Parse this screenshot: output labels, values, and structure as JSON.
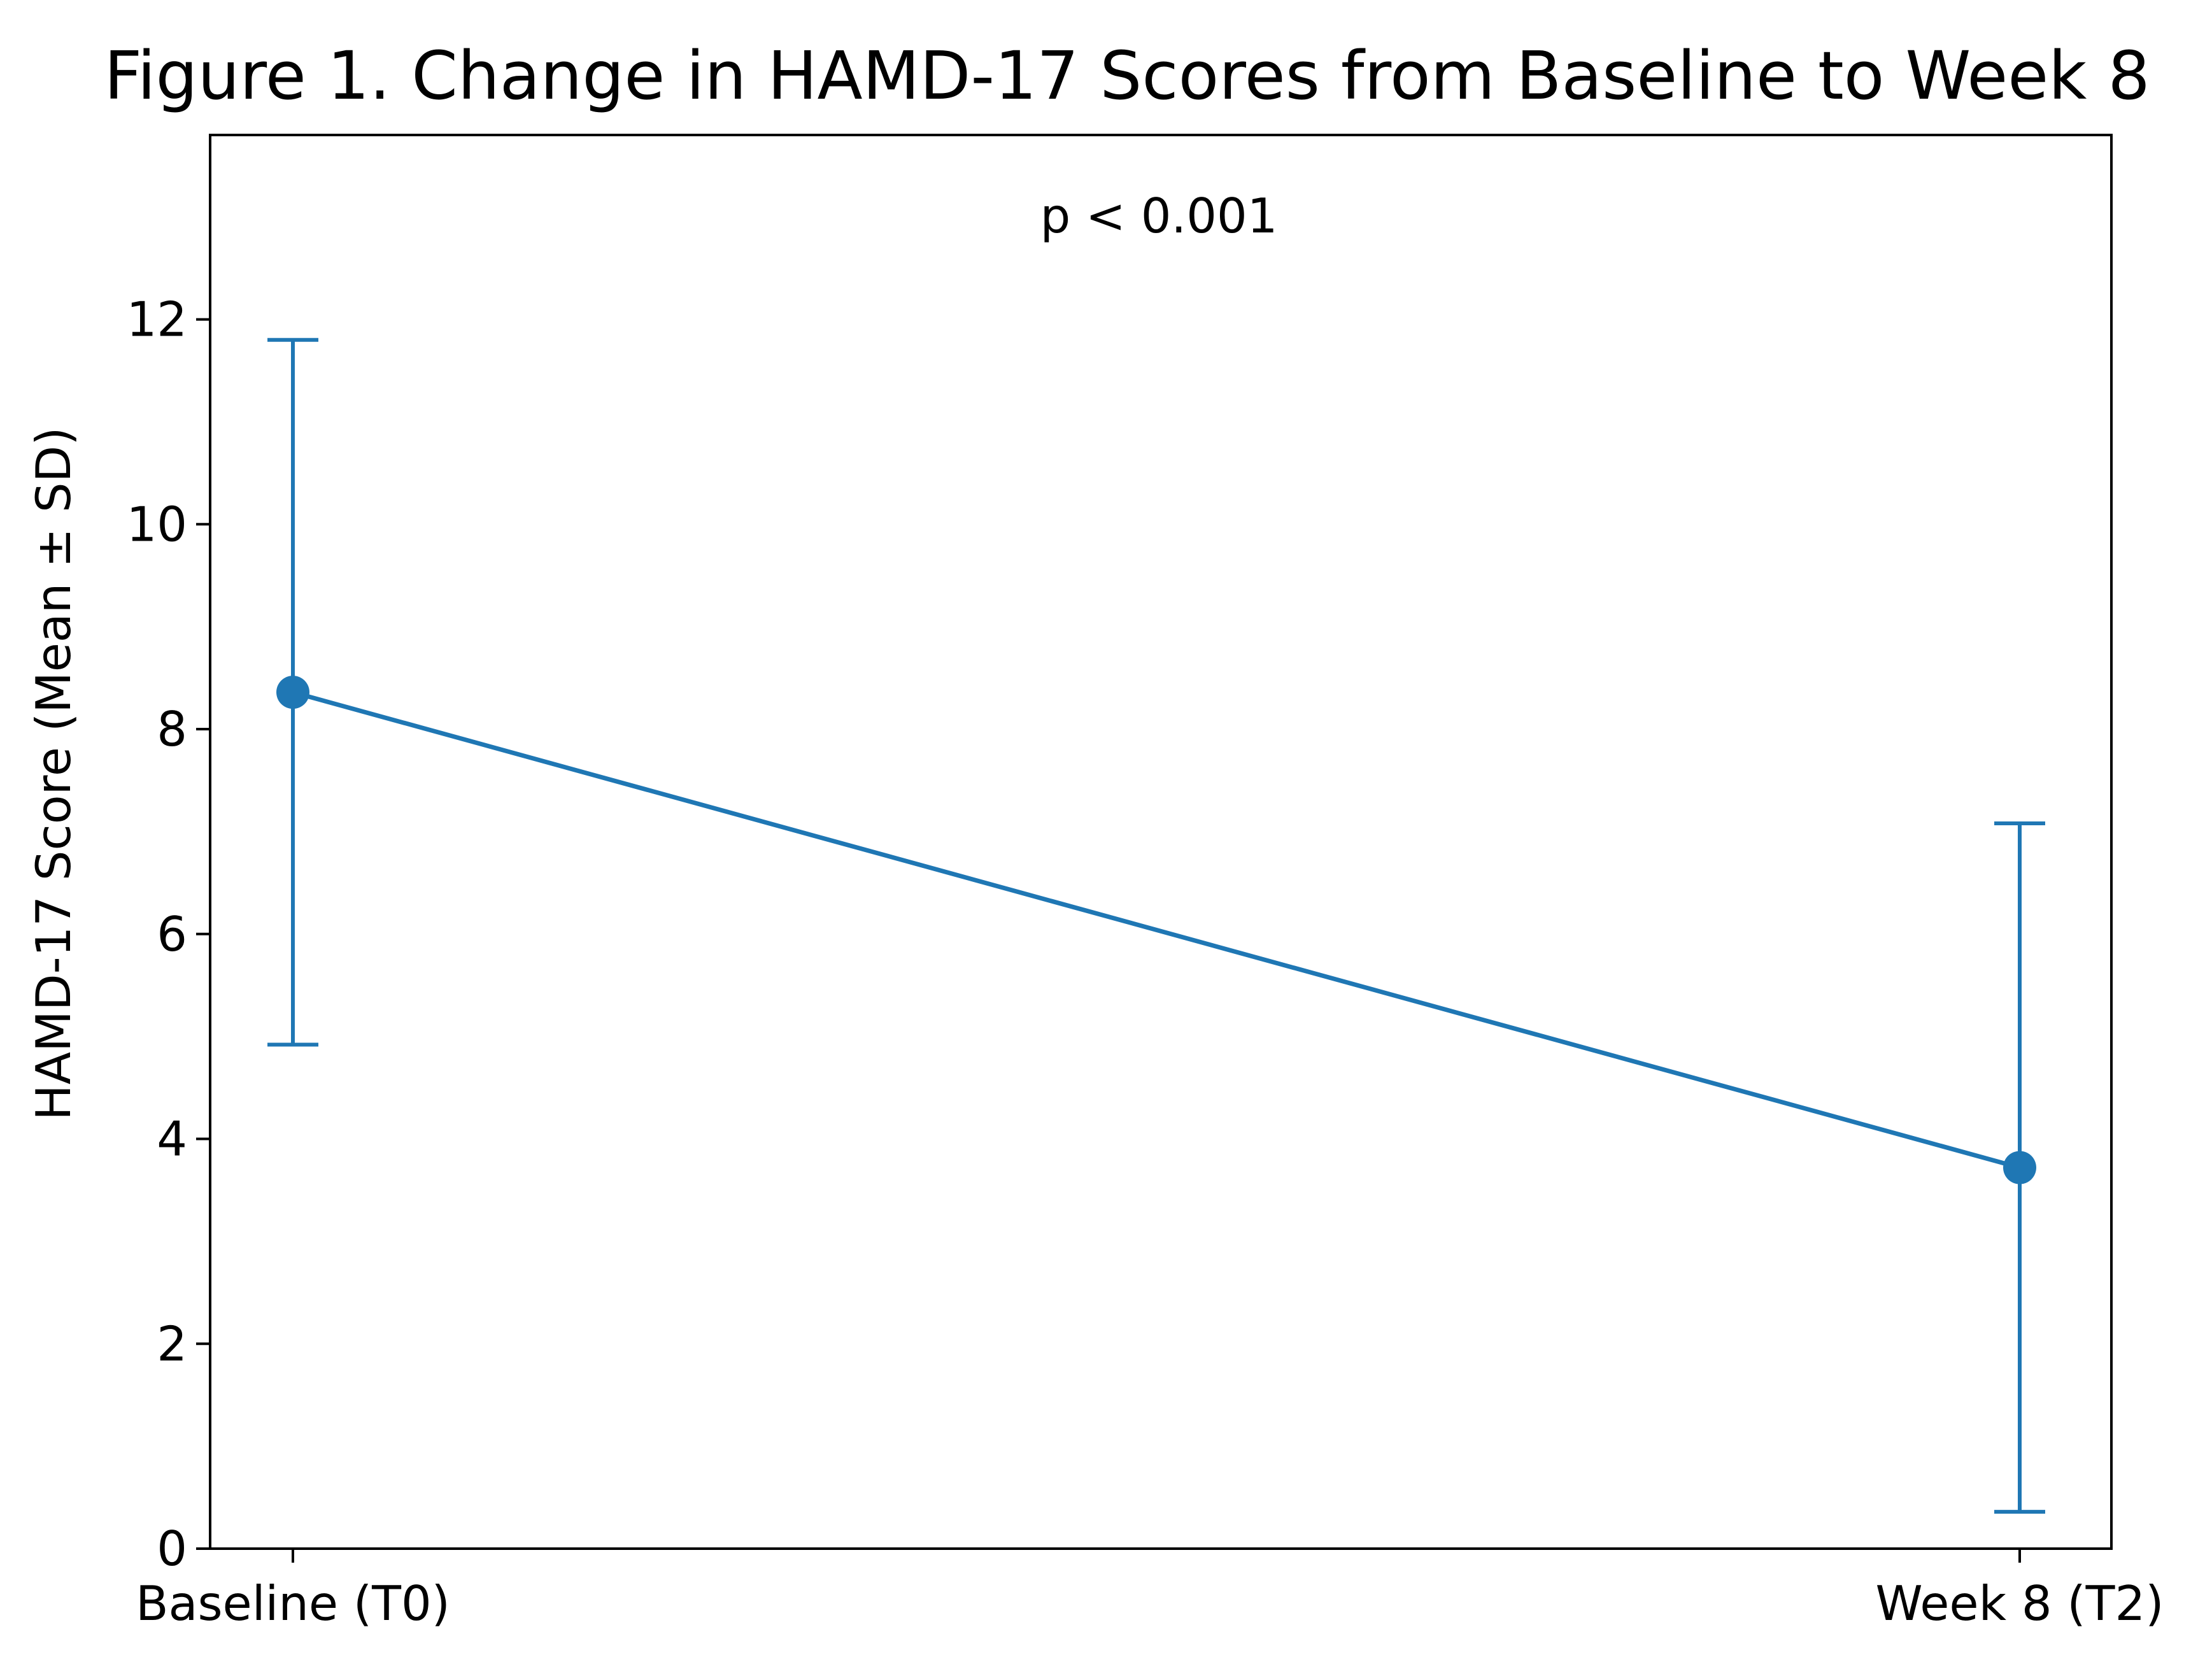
{
  "chart_data": {
    "type": "line",
    "title": "Figure 1. Change in HAMD-17 Scores from Baseline to Week 8",
    "xlabel": "",
    "ylabel": "HAMD-17 Score (Mean ± SD)",
    "categories": [
      "Baseline (T0)",
      "Week 8 (T2)"
    ],
    "series": [
      {
        "values": [
          8.36,
          3.72
        ],
        "error": [
          3.44,
          3.36
        ],
        "color": "#1f77b4"
      }
    ],
    "ylim": [
      0,
      13.8
    ],
    "yticks": [
      0,
      2,
      4,
      6,
      8,
      10,
      12
    ],
    "annotations": [
      "p < 0.001"
    ],
    "grid": false,
    "legend": "none"
  }
}
